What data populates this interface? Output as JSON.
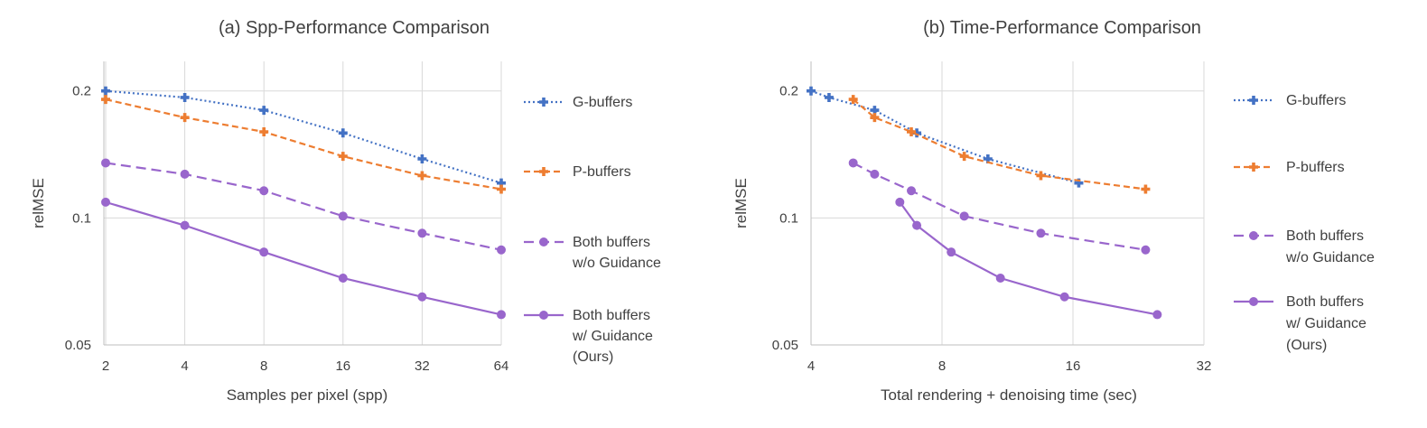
{
  "chart_data": [
    {
      "type": "line",
      "title": "(a) Spp-Performance Comparison",
      "xlabel": "Samples per pixel (spp)",
      "ylabel": "relMSE",
      "xscale": "log2",
      "yscale": "log",
      "x": [
        2,
        4,
        8,
        16,
        32,
        64
      ],
      "x_ticks": [
        "2",
        "4",
        "8",
        "16",
        "32",
        "64"
      ],
      "y_ticks": [
        "0.05",
        "0.1",
        "0.2"
      ],
      "ylim": [
        0.05,
        0.235
      ],
      "grid": "on",
      "legend_position": "right",
      "series": [
        {
          "name": "G-buffers",
          "color": "#4472C4",
          "dash": "dotted",
          "marker": "cross",
          "points": [
            [
              2,
              0.2
            ],
            [
              4,
              0.193
            ],
            [
              8,
              0.18
            ],
            [
              16,
              0.159
            ],
            [
              32,
              0.138
            ],
            [
              64,
              0.121
            ]
          ]
        },
        {
          "name": "P-buffers",
          "color": "#ED7D31",
          "dash": "dashed",
          "marker": "cross",
          "points": [
            [
              2,
              0.191
            ],
            [
              4,
              0.173
            ],
            [
              8,
              0.16
            ],
            [
              16,
              0.14
            ],
            [
              32,
              0.126
            ],
            [
              64,
              0.117
            ]
          ]
        },
        {
          "name_lines": [
            "Both buffers",
            "w/o Guidance"
          ],
          "color": "#9966CC",
          "dash": "longdash",
          "marker": "circle",
          "points": [
            [
              2,
              0.135
            ],
            [
              4,
              0.127
            ],
            [
              8,
              0.116
            ],
            [
              16,
              0.101
            ],
            [
              32,
              0.092
            ],
            [
              64,
              0.084
            ]
          ]
        },
        {
          "name_lines": [
            "Both buffers",
            "w/ Guidance",
            "(Ours)"
          ],
          "color": "#9966CC",
          "dash": "solid",
          "marker": "circle",
          "points": [
            [
              2,
              0.109
            ],
            [
              4,
              0.096
            ],
            [
              8,
              0.083
            ],
            [
              16,
              0.072
            ],
            [
              32,
              0.065
            ],
            [
              64,
              0.059
            ]
          ]
        }
      ]
    },
    {
      "type": "line",
      "title": "(b) Time-Performance Comparison",
      "xlabel": "Total rendering + denoising time (sec)",
      "ylabel": "relMSE",
      "xscale": "log2",
      "yscale": "log",
      "x_ticks": [
        "4",
        "8",
        "16",
        "32"
      ],
      "y_ticks": [
        "0.05",
        "0.1",
        "0.2"
      ],
      "ylim": [
        0.05,
        0.235
      ],
      "xlim": [
        4,
        32
      ],
      "grid": "on",
      "legend_position": "right",
      "series": [
        {
          "name": "G-buffers",
          "color": "#4472C4",
          "dash": "dotted",
          "marker": "cross",
          "points": [
            [
              4.0,
              0.2
            ],
            [
              4.4,
              0.193
            ],
            [
              5.6,
              0.18
            ],
            [
              7.0,
              0.159
            ],
            [
              10.2,
              0.138
            ],
            [
              16.5,
              0.121
            ]
          ]
        },
        {
          "name": "P-buffers",
          "color": "#ED7D31",
          "dash": "dashed",
          "marker": "cross",
          "points": [
            [
              5.0,
              0.191
            ],
            [
              5.6,
              0.173
            ],
            [
              6.8,
              0.16
            ],
            [
              9.0,
              0.14
            ],
            [
              13.5,
              0.126
            ],
            [
              23.5,
              0.117
            ]
          ]
        },
        {
          "name_lines": [
            "Both buffers",
            "w/o Guidance"
          ],
          "color": "#9966CC",
          "dash": "longdash",
          "marker": "circle",
          "points": [
            [
              5.0,
              0.135
            ],
            [
              5.6,
              0.127
            ],
            [
              6.8,
              0.116
            ],
            [
              9.0,
              0.101
            ],
            [
              13.5,
              0.092
            ],
            [
              23.5,
              0.084
            ]
          ]
        },
        {
          "name_lines": [
            "Both buffers",
            "w/ Guidance",
            "(Ours)"
          ],
          "color": "#9966CC",
          "dash": "solid",
          "marker": "circle",
          "points": [
            [
              6.4,
              0.109
            ],
            [
              7.0,
              0.096
            ],
            [
              8.4,
              0.083
            ],
            [
              10.9,
              0.072
            ],
            [
              15.3,
              0.065
            ],
            [
              25.0,
              0.059
            ]
          ]
        }
      ]
    }
  ]
}
